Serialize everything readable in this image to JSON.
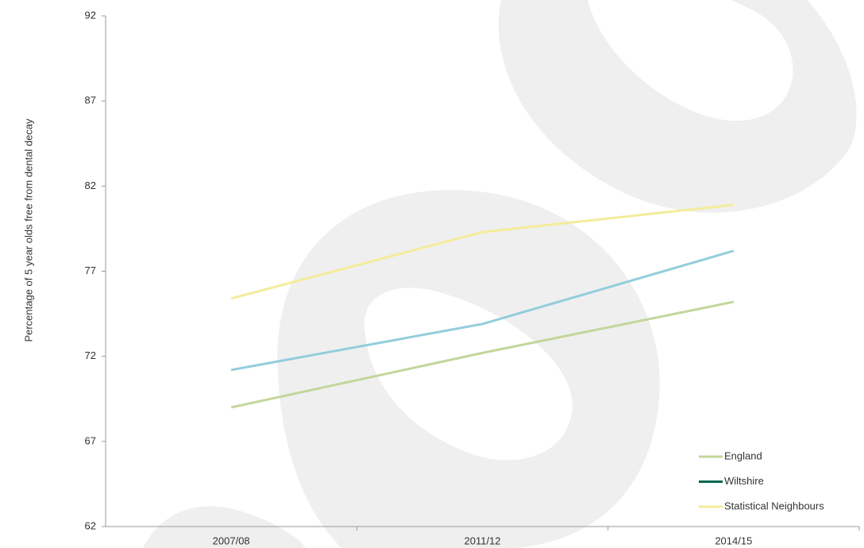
{
  "chart_data": {
    "type": "line",
    "y_label": "Percentage of 5 year olds free from dental decay",
    "categories": [
      "2007/08",
      "2011/12",
      "2014/15"
    ],
    "series": [
      {
        "name": "England",
        "color": "#c3d69b",
        "legend_color": "#c3d69b",
        "values": [
          69.0,
          72.2,
          75.2
        ]
      },
      {
        "name": "Wiltshire",
        "color": "#92cddc",
        "legend_color": "#00664f",
        "values": [
          71.2,
          73.9,
          78.2
        ]
      },
      {
        "name": "Statistical Neighbours",
        "color": "#f4ec9a",
        "legend_color": "#f4ec9a",
        "values": [
          75.4,
          79.3,
          80.9
        ]
      }
    ],
    "ylim": [
      62,
      92
    ],
    "yticks": [
      62,
      67,
      72,
      77,
      82,
      87,
      92
    ],
    "legend": "lower right"
  }
}
